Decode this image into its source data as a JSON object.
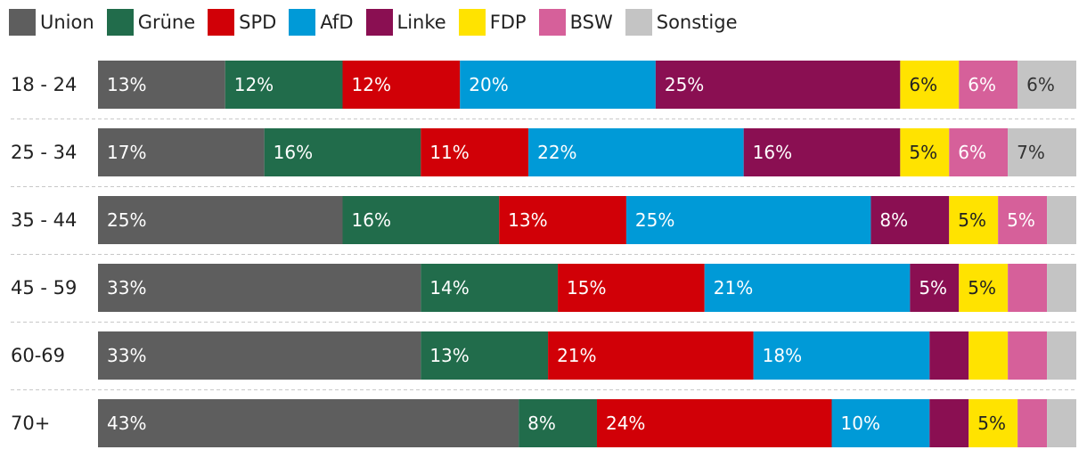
{
  "colors": {
    "Union": "#5e5e5e",
    "Grüne": "#216c4b",
    "SPD": "#d10007",
    "AfD": "#009ad7",
    "Linke": "#8a0f52",
    "FDP": "#ffe300",
    "BSW": "#d6609a",
    "Sonstige": "#c4c4c4"
  },
  "chart_data": {
    "type": "bar",
    "orientation": "horizontal",
    "stacked": true,
    "title": "",
    "legend_position": "top",
    "xlim": [
      0,
      100
    ],
    "categories": [
      "18 - 24",
      "25 - 34",
      "35 - 44",
      "45 - 59",
      "60-69",
      "70+"
    ],
    "series": [
      {
        "name": "Union",
        "values": [
          13,
          17,
          25,
          33,
          33,
          43
        ],
        "labels": [
          "13%",
          "17%",
          "25%",
          "33%",
          "33%",
          "43%"
        ]
      },
      {
        "name": "Grüne",
        "values": [
          12,
          16,
          16,
          14,
          13,
          8
        ],
        "labels": [
          "12%",
          "16%",
          "16%",
          "14%",
          "13%",
          "8%"
        ]
      },
      {
        "name": "SPD",
        "values": [
          12,
          11,
          13,
          15,
          21,
          24
        ],
        "labels": [
          "12%",
          "11%",
          "13%",
          "15%",
          "21%",
          "24%"
        ]
      },
      {
        "name": "AfD",
        "values": [
          20,
          22,
          25,
          21,
          18,
          10
        ],
        "labels": [
          "20%",
          "22%",
          "25%",
          "21%",
          "18%",
          "10%"
        ]
      },
      {
        "name": "Linke",
        "values": [
          25,
          16,
          8,
          5,
          4,
          4
        ],
        "labels": [
          "25%",
          "16%",
          "8%",
          "5%",
          "",
          ""
        ]
      },
      {
        "name": "FDP",
        "values": [
          6,
          5,
          5,
          5,
          4,
          5
        ],
        "labels": [
          "6%",
          "5%",
          "5%",
          "5%",
          "",
          "5%"
        ]
      },
      {
        "name": "BSW",
        "values": [
          6,
          6,
          5,
          4,
          4,
          3
        ],
        "labels": [
          "6%",
          "6%",
          "5%",
          "",
          "",
          ""
        ]
      },
      {
        "name": "Sonstige",
        "values": [
          6,
          7,
          3,
          3,
          3,
          3
        ],
        "labels": [
          "6%",
          "7%",
          "",
          "",
          "",
          ""
        ]
      }
    ]
  }
}
